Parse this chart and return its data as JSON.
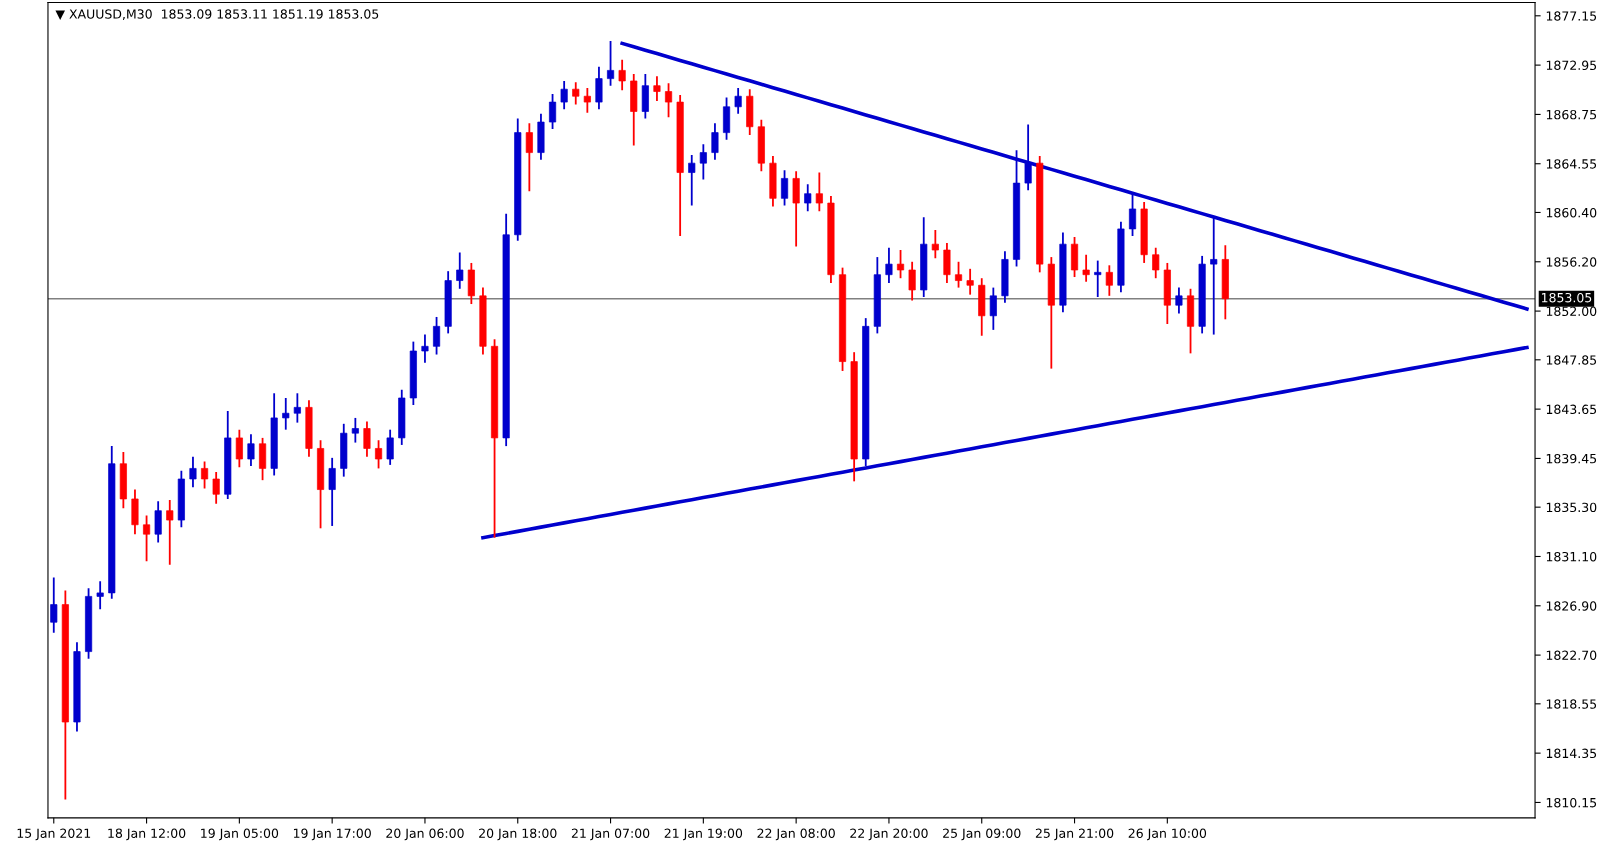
{
  "chart_data": {
    "type": "candlestick",
    "title": "▼ XAUUSD,M30  1853.09 1853.11 1851.19 1853.05",
    "categories": [
      "15 Jan 2021",
      null,
      null,
      null,
      null,
      null,
      null,
      null,
      "18 Jan 12:00",
      null,
      null,
      null,
      null,
      null,
      null,
      null,
      "19 Jan 05:00",
      null,
      null,
      null,
      null,
      null,
      null,
      null,
      "19 Jan 17:00",
      null,
      null,
      null,
      null,
      null,
      null,
      null,
      "20 Jan 06:00",
      null,
      null,
      null,
      null,
      null,
      null,
      null,
      "20 Jan 18:00",
      null,
      null,
      null,
      null,
      null,
      null,
      null,
      "21 Jan 07:00",
      null,
      null,
      null,
      null,
      null,
      null,
      null,
      "21 Jan 19:00",
      null,
      null,
      null,
      null,
      null,
      null,
      null,
      "22 Jan 08:00",
      null,
      null,
      null,
      null,
      null,
      null,
      null,
      "22 Jan 20:00",
      null,
      null,
      null,
      null,
      null,
      null,
      null,
      "25 Jan 09:00",
      null,
      null,
      null,
      null,
      null,
      null,
      null,
      "25 Jan 21:00",
      null,
      null,
      null,
      null,
      null,
      null,
      null,
      "26 Jan 10:00",
      null,
      null,
      null,
      null,
      null,
      null,
      null,
      null,
      null,
      null,
      null,
      null,
      null,
      null,
      null,
      null,
      null,
      null,
      null,
      null,
      null,
      null,
      null,
      null,
      null,
      null,
      null,
      null,
      null,
      null,
      null
    ],
    "ohlc": [
      [
        1825.5,
        1829.3,
        1824.6,
        1827.0
      ],
      [
        1827.0,
        1828.2,
        1810.4,
        1817.0
      ],
      [
        1817.0,
        1823.8,
        1816.2,
        1823.0
      ],
      [
        1823.0,
        1828.4,
        1822.4,
        1827.7
      ],
      [
        1827.7,
        1829.0,
        1826.6,
        1828.0
      ],
      [
        1828.0,
        1840.5,
        1827.5,
        1839.0
      ],
      [
        1839.0,
        1840.0,
        1835.2,
        1836.0
      ],
      [
        1836.0,
        1836.8,
        1833.0,
        1833.8
      ],
      [
        1833.8,
        1834.6,
        1830.7,
        1833.0
      ],
      [
        1833.0,
        1835.8,
        1832.3,
        1835.0
      ],
      [
        1835.0,
        1835.9,
        1830.4,
        1834.2
      ],
      [
        1834.2,
        1838.4,
        1833.6,
        1837.7
      ],
      [
        1837.7,
        1839.6,
        1837.0,
        1838.6
      ],
      [
        1838.6,
        1839.2,
        1836.9,
        1837.7
      ],
      [
        1837.7,
        1838.3,
        1835.6,
        1836.4
      ],
      [
        1836.4,
        1843.5,
        1836.0,
        1841.2
      ],
      [
        1841.2,
        1841.9,
        1838.7,
        1839.4
      ],
      [
        1839.4,
        1841.5,
        1838.8,
        1840.7
      ],
      [
        1840.7,
        1841.2,
        1837.6,
        1838.6
      ],
      [
        1838.6,
        1845.0,
        1838.0,
        1842.9
      ],
      [
        1842.9,
        1844.6,
        1841.9,
        1843.3
      ],
      [
        1843.3,
        1845.0,
        1842.5,
        1843.8
      ],
      [
        1843.8,
        1844.4,
        1839.6,
        1840.3
      ],
      [
        1840.3,
        1841.0,
        1833.5,
        1836.8
      ],
      [
        1836.8,
        1839.5,
        1833.7,
        1838.6
      ],
      [
        1838.6,
        1842.4,
        1837.9,
        1841.6
      ],
      [
        1841.6,
        1842.9,
        1840.8,
        1842.0
      ],
      [
        1842.0,
        1842.6,
        1839.6,
        1840.3
      ],
      [
        1840.3,
        1841.0,
        1838.6,
        1839.4
      ],
      [
        1839.4,
        1841.9,
        1838.9,
        1841.2
      ],
      [
        1841.2,
        1845.3,
        1840.6,
        1844.6
      ],
      [
        1844.6,
        1849.4,
        1844.0,
        1848.6
      ],
      [
        1848.6,
        1850.0,
        1847.6,
        1849.0
      ],
      [
        1849.0,
        1851.5,
        1848.3,
        1850.7
      ],
      [
        1850.7,
        1855.4,
        1850.1,
        1854.6
      ],
      [
        1854.6,
        1857.0,
        1853.9,
        1855.5
      ],
      [
        1855.5,
        1856.1,
        1852.6,
        1853.3
      ],
      [
        1853.3,
        1854.0,
        1848.3,
        1849.0
      ],
      [
        1849.0,
        1849.6,
        1832.7,
        1841.2
      ],
      [
        1841.2,
        1860.3,
        1840.5,
        1858.5
      ],
      [
        1858.5,
        1868.4,
        1858.0,
        1867.2
      ],
      [
        1867.2,
        1868.0,
        1862.2,
        1865.5
      ],
      [
        1865.5,
        1868.8,
        1864.9,
        1868.1
      ],
      [
        1868.1,
        1870.5,
        1867.5,
        1869.8
      ],
      [
        1869.8,
        1871.6,
        1869.2,
        1870.9
      ],
      [
        1870.9,
        1871.5,
        1869.6,
        1870.3
      ],
      [
        1870.3,
        1871.0,
        1868.9,
        1869.8
      ],
      [
        1869.8,
        1872.8,
        1869.2,
        1871.8
      ],
      [
        1871.8,
        1875.0,
        1871.2,
        1872.5
      ],
      [
        1872.5,
        1873.4,
        1870.8,
        1871.6
      ],
      [
        1871.6,
        1872.2,
        1866.1,
        1869.0
      ],
      [
        1869.0,
        1872.2,
        1868.4,
        1871.2
      ],
      [
        1871.2,
        1872.0,
        1869.9,
        1870.7
      ],
      [
        1870.7,
        1871.4,
        1868.5,
        1869.8
      ],
      [
        1869.8,
        1870.4,
        1858.4,
        1863.8
      ],
      [
        1863.8,
        1865.3,
        1861.0,
        1864.6
      ],
      [
        1864.6,
        1866.2,
        1863.2,
        1865.5
      ],
      [
        1865.5,
        1868.0,
        1864.9,
        1867.2
      ],
      [
        1867.2,
        1870.2,
        1866.6,
        1869.4
      ],
      [
        1869.4,
        1871.0,
        1868.8,
        1870.3
      ],
      [
        1870.3,
        1870.9,
        1867.0,
        1867.7
      ],
      [
        1867.7,
        1868.3,
        1863.9,
        1864.6
      ],
      [
        1864.6,
        1865.2,
        1860.9,
        1861.6
      ],
      [
        1861.6,
        1864.0,
        1861.0,
        1863.3
      ],
      [
        1863.3,
        1863.9,
        1857.5,
        1861.2
      ],
      [
        1861.2,
        1862.8,
        1860.5,
        1862.0
      ],
      [
        1862.0,
        1863.8,
        1860.5,
        1861.2
      ],
      [
        1861.2,
        1861.8,
        1854.4,
        1855.1
      ],
      [
        1855.1,
        1855.7,
        1846.9,
        1847.7
      ],
      [
        1847.7,
        1848.5,
        1837.5,
        1839.4
      ],
      [
        1839.4,
        1851.4,
        1838.8,
        1850.7
      ],
      [
        1850.7,
        1856.6,
        1850.1,
        1855.1
      ],
      [
        1855.1,
        1857.4,
        1854.4,
        1856.0
      ],
      [
        1856.0,
        1857.2,
        1854.8,
        1855.5
      ],
      [
        1855.5,
        1856.2,
        1852.9,
        1853.8
      ],
      [
        1853.8,
        1860.0,
        1853.2,
        1857.7
      ],
      [
        1857.7,
        1858.9,
        1856.5,
        1857.2
      ],
      [
        1857.2,
        1857.8,
        1854.4,
        1855.1
      ],
      [
        1855.1,
        1856.2,
        1854.0,
        1854.6
      ],
      [
        1854.6,
        1855.6,
        1853.4,
        1854.2
      ],
      [
        1854.2,
        1854.8,
        1849.9,
        1851.6
      ],
      [
        1851.6,
        1854.0,
        1850.4,
        1853.3
      ],
      [
        1853.3,
        1857.1,
        1852.7,
        1856.4
      ],
      [
        1856.4,
        1865.7,
        1855.8,
        1862.9
      ],
      [
        1862.9,
        1867.9,
        1862.3,
        1864.6
      ],
      [
        1864.6,
        1865.2,
        1855.3,
        1856.0
      ],
      [
        1856.0,
        1856.6,
        1847.1,
        1852.5
      ],
      [
        1852.5,
        1858.7,
        1851.9,
        1857.7
      ],
      [
        1857.7,
        1858.3,
        1854.9,
        1855.5
      ],
      [
        1855.5,
        1856.8,
        1854.5,
        1855.1
      ],
      [
        1855.1,
        1856.3,
        1853.2,
        1855.3
      ],
      [
        1855.3,
        1855.9,
        1853.3,
        1854.2
      ],
      [
        1854.2,
        1859.6,
        1853.6,
        1859.0
      ],
      [
        1859.0,
        1862.0,
        1858.4,
        1860.7
      ],
      [
        1860.7,
        1861.3,
        1856.1,
        1856.8
      ],
      [
        1856.8,
        1857.4,
        1854.8,
        1855.5
      ],
      [
        1855.5,
        1856.1,
        1850.9,
        1852.5
      ],
      [
        1852.5,
        1854.0,
        1851.8,
        1853.3
      ],
      [
        1853.3,
        1853.9,
        1848.4,
        1850.7
      ],
      [
        1850.7,
        1856.7,
        1850.1,
        1856.0
      ],
      [
        1856.0,
        1860.0,
        1850.0,
        1856.4
      ],
      [
        1856.4,
        1857.6,
        1851.3,
        1853.05
      ],
      null,
      null,
      null,
      null,
      null,
      null,
      null,
      null,
      null,
      null,
      null,
      null,
      null,
      null,
      null,
      null,
      null,
      null,
      null,
      null,
      null,
      null,
      null,
      null,
      null,
      null
    ],
    "colors": [
      "#0000cd",
      "#ff0000",
      "#0000cd",
      "#0000cd",
      "#0000cd",
      "#0000cd",
      "#ff0000",
      "#ff0000",
      "#ff0000",
      "#0000cd",
      "#ff0000",
      "#0000cd",
      "#0000cd",
      "#ff0000",
      "#ff0000",
      "#0000cd",
      "#ff0000",
      "#0000cd",
      "#ff0000",
      "#0000cd",
      "#0000cd",
      "#0000cd",
      "#ff0000",
      "#ff0000",
      "#0000cd",
      "#0000cd",
      "#0000cd",
      "#ff0000",
      "#ff0000",
      "#0000cd",
      "#0000cd",
      "#0000cd",
      "#0000cd",
      "#0000cd",
      "#0000cd",
      "#0000cd",
      "#ff0000",
      "#ff0000",
      "#ff0000",
      "#0000cd",
      "#0000cd",
      "#ff0000",
      "#0000cd",
      "#0000cd",
      "#0000cd",
      "#ff0000",
      "#ff0000",
      "#0000cd",
      "#0000cd",
      "#ff0000",
      "#ff0000",
      "#0000cd",
      "#ff0000",
      "#ff0000",
      "#ff0000",
      "#0000cd",
      "#0000cd",
      "#0000cd",
      "#0000cd",
      "#0000cd",
      "#ff0000",
      "#ff0000",
      "#ff0000",
      "#0000cd",
      "#ff0000",
      "#0000cd",
      "#ff0000",
      "#ff0000",
      "#ff0000",
      "#ff0000",
      "#0000cd",
      "#0000cd",
      "#0000cd",
      "#ff0000",
      "#ff0000",
      "#0000cd",
      "#ff0000",
      "#ff0000",
      "#ff0000",
      "#ff0000",
      "#ff0000",
      "#0000cd",
      "#0000cd",
      "#0000cd",
      "#0000cd",
      "#ff0000",
      "#ff0000",
      "#0000cd",
      "#ff0000",
      "#ff0000",
      "#0000cd",
      "#ff0000",
      "#0000cd",
      "#0000cd",
      "#ff0000",
      "#ff0000",
      "#ff0000",
      "#0000cd",
      "#ff0000",
      "#0000cd",
      "#0000cd",
      "#ff0000",
      null,
      null,
      null,
      null,
      null,
      null,
      null,
      null,
      null,
      null,
      null,
      null,
      null,
      null,
      null,
      null,
      null,
      null,
      null,
      null,
      null,
      null,
      null,
      null,
      null,
      null
    ],
    "series": [
      {
        "type": "line",
        "color": "#0000cd",
        "values": [
          null,
          null,
          null,
          null,
          null,
          null,
          null,
          null,
          null,
          null,
          null,
          null,
          null,
          null,
          null,
          null,
          null,
          null,
          null,
          null,
          null,
          null,
          null,
          null,
          null,
          null,
          null,
          null,
          null,
          null,
          null,
          null,
          null,
          null,
          null,
          null,
          null,
          null,
          null,
          null,
          null,
          null,
          null,
          null,
          null,
          null,
          null,
          null,
          null,
          1874.8,
          1874.51,
          1874.22,
          1873.93,
          1873.64,
          1873.35,
          1873.06,
          1872.77,
          1872.48,
          1872.19,
          1871.9,
          1871.61,
          1871.32,
          1871.03,
          1870.74,
          1870.45,
          1870.16,
          1869.87,
          1869.58,
          1869.29,
          1869.0,
          1868.71,
          1868.42,
          1868.13,
          1867.84,
          1867.55,
          1867.26,
          1866.97,
          1866.68,
          1866.39,
          1866.1,
          1865.81,
          1865.52,
          1865.23,
          1864.94,
          1864.65,
          1864.36,
          1864.07,
          1863.78,
          1863.49,
          1863.2,
          1862.91,
          1862.62,
          1862.33,
          1862.04,
          1861.75,
          1861.46,
          1861.17,
          1860.88,
          1860.59,
          1860.3,
          1860.01,
          1859.72,
          1859.43,
          1859.14,
          1858.85,
          1858.56,
          1858.27,
          1857.98,
          1857.69,
          1857.4,
          1857.11,
          1856.82,
          1856.53,
          1856.24,
          1855.95,
          1855.66,
          1855.37,
          1855.08,
          1854.79,
          1854.5,
          1854.21,
          1853.92,
          1853.63,
          1853.34,
          1853.05,
          1852.76,
          1852.47,
          1852.18
        ]
      },
      {
        "type": "line",
        "color": "#0000cd",
        "values": [
          null,
          null,
          null,
          null,
          null,
          null,
          null,
          null,
          null,
          null,
          null,
          null,
          null,
          null,
          null,
          null,
          null,
          null,
          null,
          null,
          null,
          null,
          null,
          null,
          null,
          null,
          null,
          null,
          null,
          null,
          null,
          null,
          null,
          null,
          null,
          null,
          null,
          1832.7,
          1832.88,
          1833.06,
          1833.24,
          1833.42,
          1833.6,
          1833.78,
          1833.96,
          1834.14,
          1834.32,
          1834.5,
          1834.68,
          1834.86,
          1835.04,
          1835.22,
          1835.4,
          1835.58,
          1835.76,
          1835.94,
          1836.12,
          1836.3,
          1836.48,
          1836.66,
          1836.84,
          1837.02,
          1837.2,
          1837.38,
          1837.56,
          1837.74,
          1837.92,
          1838.1,
          1838.28,
          1838.46,
          1838.64,
          1838.82,
          1839.0,
          1839.18,
          1839.36,
          1839.54,
          1839.72,
          1839.9,
          1840.08,
          1840.26,
          1840.44,
          1840.62,
          1840.8,
          1840.98,
          1841.16,
          1841.34,
          1841.52,
          1841.7,
          1841.88,
          1842.06,
          1842.24,
          1842.42,
          1842.6,
          1842.78,
          1842.96,
          1843.14,
          1843.32,
          1843.5,
          1843.68,
          1843.86,
          1844.04,
          1844.22,
          1844.4,
          1844.58,
          1844.76,
          1844.94,
          1845.12,
          1845.3,
          1845.48,
          1845.66,
          1845.84,
          1846.02,
          1846.2,
          1846.38,
          1846.56,
          1846.74,
          1846.92,
          1847.1,
          1847.28,
          1847.46,
          1847.64,
          1847.82,
          1848.0,
          1848.18,
          1848.36,
          1848.54,
          1848.72,
          1848.9
        ]
      }
    ],
    "ref_lines": [
      {
        "axis": "y",
        "value": 1853.05,
        "label": "1853.05",
        "color": "#808080"
      }
    ],
    "ylim": [
      1808.84,
      1878.28
    ],
    "yticks": [
      {
        "value": 1810.15,
        "label": "1810.15"
      },
      {
        "value": 1814.35,
        "label": "1814.35"
      },
      {
        "value": 1818.55,
        "label": "1818.55"
      },
      {
        "value": 1822.7,
        "label": "1822.70"
      },
      {
        "value": 1826.9,
        "label": "1826.90"
      },
      {
        "value": 1831.1,
        "label": "1831.10"
      },
      {
        "value": 1835.3,
        "label": "1835.30"
      },
      {
        "value": 1839.45,
        "label": "1839.45"
      },
      {
        "value": 1843.65,
        "label": "1843.65"
      },
      {
        "value": 1847.85,
        "label": "1847.85"
      },
      {
        "value": 1852,
        "label": "1852.00"
      },
      {
        "value": 1856.2,
        "label": "1856.20"
      },
      {
        "value": 1860.4,
        "label": "1860.40"
      },
      {
        "value": 1864.55,
        "label": "1864.55"
      },
      {
        "value": 1868.75,
        "label": "1868.75"
      },
      {
        "value": 1872.95,
        "label": "1872.95"
      },
      {
        "value": 1877.15,
        "label": "1877.15"
      }
    ],
    "grid": false,
    "legend": false
  }
}
